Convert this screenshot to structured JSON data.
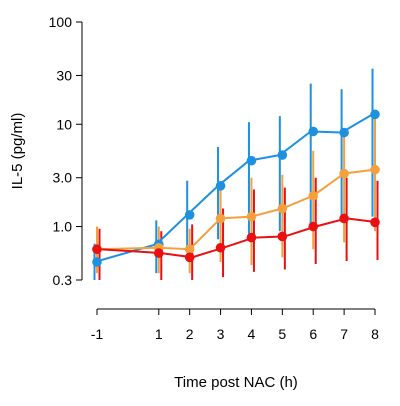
{
  "chart_data": {
    "type": "line",
    "xlabel": "Time post NAC (h)",
    "ylabel": "IL-5 (pg/ml)",
    "x": [
      -1,
      1,
      2,
      3,
      4,
      5,
      6,
      7,
      8
    ],
    "x_ticks": [
      -1,
      1,
      2,
      3,
      4,
      5,
      6,
      7,
      8
    ],
    "x_tick_labels": [
      "-1",
      "1",
      "2",
      "3",
      "4",
      "5",
      "6",
      "7",
      "8"
    ],
    "y_scale": "log",
    "ylim": [
      0.2,
      110
    ],
    "y_ticks": [
      0.3,
      1.0,
      3.0,
      10,
      30,
      100
    ],
    "y_tick_labels": [
      "0.3",
      "1.0",
      "3.0",
      "10",
      "30",
      "100"
    ],
    "grid": false,
    "series": [
      {
        "color": "#1E90E0",
        "values": [
          0.45,
          0.67,
          1.3,
          2.5,
          4.4,
          5.0,
          8.5,
          8.3,
          12.5
        ],
        "lower": [
          0.3,
          0.35,
          0.58,
          0.75,
          0.85,
          0.9,
          0.95,
          1.1,
          1.25
        ],
        "upper": [
          0.68,
          1.15,
          2.8,
          6.0,
          10.5,
          12.0,
          25.0,
          22.0,
          35.0
        ]
      },
      {
        "color": "#F5A040",
        "values": [
          0.6,
          0.62,
          0.6,
          1.2,
          1.25,
          1.5,
          2.0,
          3.3,
          3.6
        ],
        "lower": [
          0.35,
          0.35,
          0.35,
          0.45,
          0.42,
          0.5,
          0.6,
          0.7,
          0.9
        ],
        "upper": [
          1.0,
          1.0,
          0.95,
          2.5,
          3.0,
          3.2,
          5.5,
          9.0,
          12.0
        ]
      },
      {
        "color": "#E81010",
        "values": [
          0.6,
          0.55,
          0.5,
          0.62,
          0.78,
          0.8,
          1.0,
          1.2,
          1.1
        ],
        "lower": [
          0.3,
          0.3,
          0.3,
          0.32,
          0.36,
          0.38,
          0.43,
          0.46,
          0.47
        ],
        "upper": [
          0.95,
          0.9,
          1.05,
          1.5,
          2.3,
          2.4,
          3.0,
          3.0,
          2.8
        ]
      }
    ]
  }
}
